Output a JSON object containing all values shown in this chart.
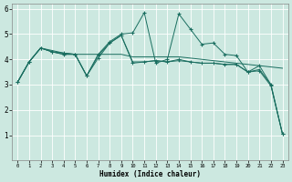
{
  "xlabel": "Humidex (Indice chaleur)",
  "bg_color": "#cce8e0",
  "grid_color": "#ffffff",
  "line_color": "#1a6e60",
  "xlim": [
    -0.5,
    23.5
  ],
  "ylim": [
    0,
    6.2
  ],
  "yticks": [
    1,
    2,
    3,
    4,
    5,
    6
  ],
  "xticks": [
    0,
    1,
    2,
    3,
    4,
    5,
    6,
    7,
    8,
    9,
    10,
    11,
    12,
    13,
    14,
    15,
    16,
    17,
    18,
    19,
    20,
    21,
    22,
    23
  ],
  "s1_x": [
    0,
    1,
    2,
    3,
    4,
    5,
    6,
    7,
    8,
    9,
    10,
    11,
    12,
    13,
    14,
    15,
    16,
    17,
    18,
    19,
    20,
    21,
    22,
    23
  ],
  "s1_y": [
    3.1,
    3.9,
    4.45,
    4.3,
    4.2,
    4.2,
    3.35,
    4.2,
    4.7,
    5.0,
    5.05,
    5.85,
    3.85,
    4.0,
    5.8,
    5.2,
    4.6,
    4.65,
    4.2,
    4.15,
    3.5,
    3.75,
    3.0,
    1.05
  ],
  "s2_x": [
    0,
    1,
    2,
    3,
    4,
    5,
    6,
    7,
    8,
    9,
    10,
    11,
    12,
    13,
    14,
    15,
    16,
    17,
    18,
    19,
    20,
    21,
    22,
    23
  ],
  "s2_y": [
    3.1,
    3.9,
    4.45,
    4.35,
    4.25,
    4.2,
    4.2,
    4.2,
    4.2,
    4.2,
    4.1,
    4.1,
    4.1,
    4.1,
    4.1,
    4.05,
    4.0,
    3.95,
    3.9,
    3.85,
    3.8,
    3.75,
    3.7,
    3.65
  ],
  "s3_x": [
    0,
    1,
    2,
    3,
    4,
    5,
    6,
    7,
    8,
    9,
    10,
    11,
    12,
    13,
    14,
    15,
    16,
    17,
    18,
    19,
    20,
    21,
    22,
    23
  ],
  "s3_y": [
    3.1,
    3.9,
    4.45,
    4.3,
    4.25,
    4.2,
    3.35,
    4.05,
    4.65,
    4.95,
    3.85,
    3.9,
    3.95,
    3.9,
    4.0,
    3.9,
    3.85,
    3.85,
    3.8,
    3.8,
    3.5,
    3.55,
    2.95,
    1.05
  ],
  "s4_x": [
    0,
    1,
    2,
    3,
    4,
    5,
    6,
    7,
    8,
    9,
    10,
    11,
    12,
    13,
    14,
    15,
    16,
    17,
    18,
    19,
    20,
    21,
    22,
    23
  ],
  "s4_y": [
    3.1,
    3.9,
    4.45,
    4.3,
    4.2,
    4.2,
    3.35,
    4.15,
    4.65,
    4.95,
    3.9,
    3.9,
    3.95,
    3.9,
    3.95,
    3.9,
    3.85,
    3.85,
    3.8,
    3.8,
    3.5,
    3.6,
    3.0,
    1.05
  ]
}
